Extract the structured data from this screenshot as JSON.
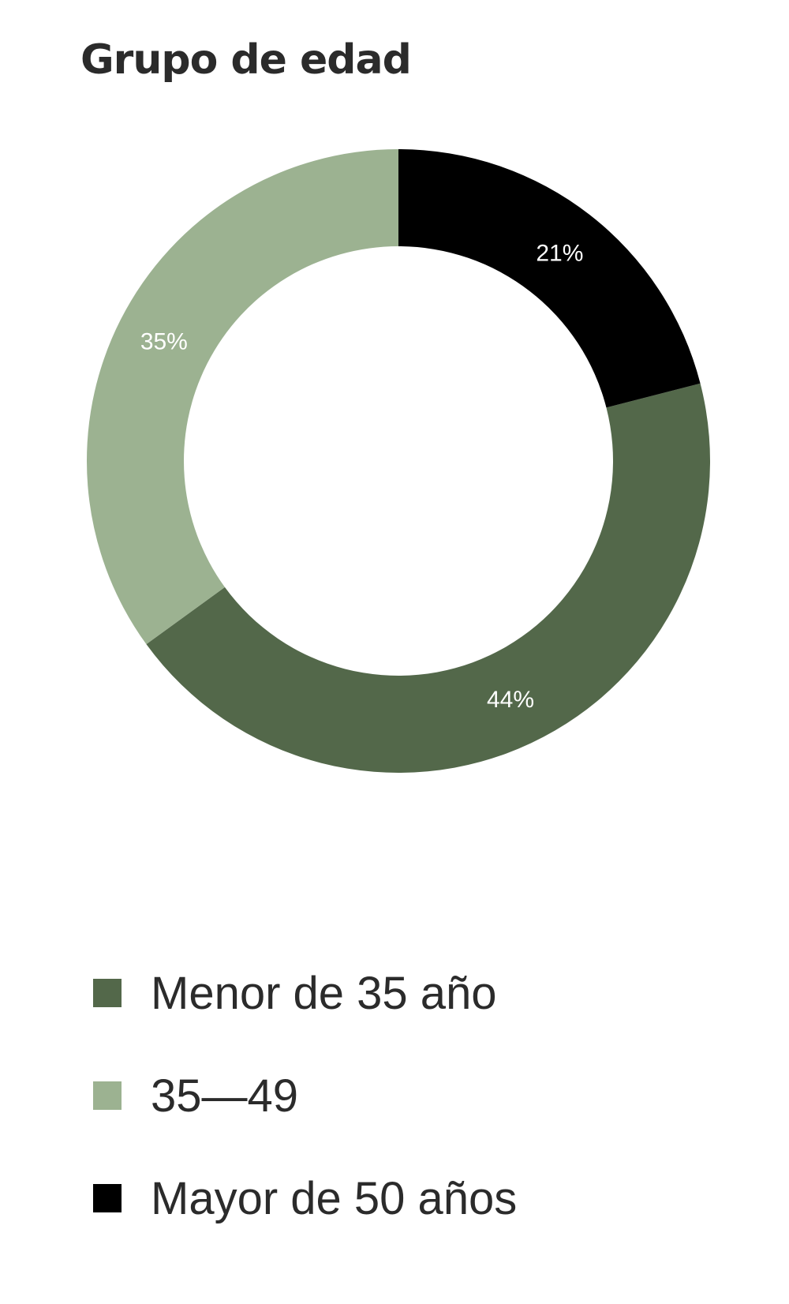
{
  "chart_data": {
    "type": "pie",
    "title": "Grupo de edad",
    "categories": [
      "Menor de 35 año",
      "35—49",
      "Mayor de 50 años"
    ],
    "values": [
      44,
      35,
      21
    ],
    "data_labels": [
      "44%",
      "35%",
      "21%"
    ],
    "colors": [
      "#53684a",
      "#9cb291",
      "#000000"
    ],
    "legend_position": "bottom"
  }
}
